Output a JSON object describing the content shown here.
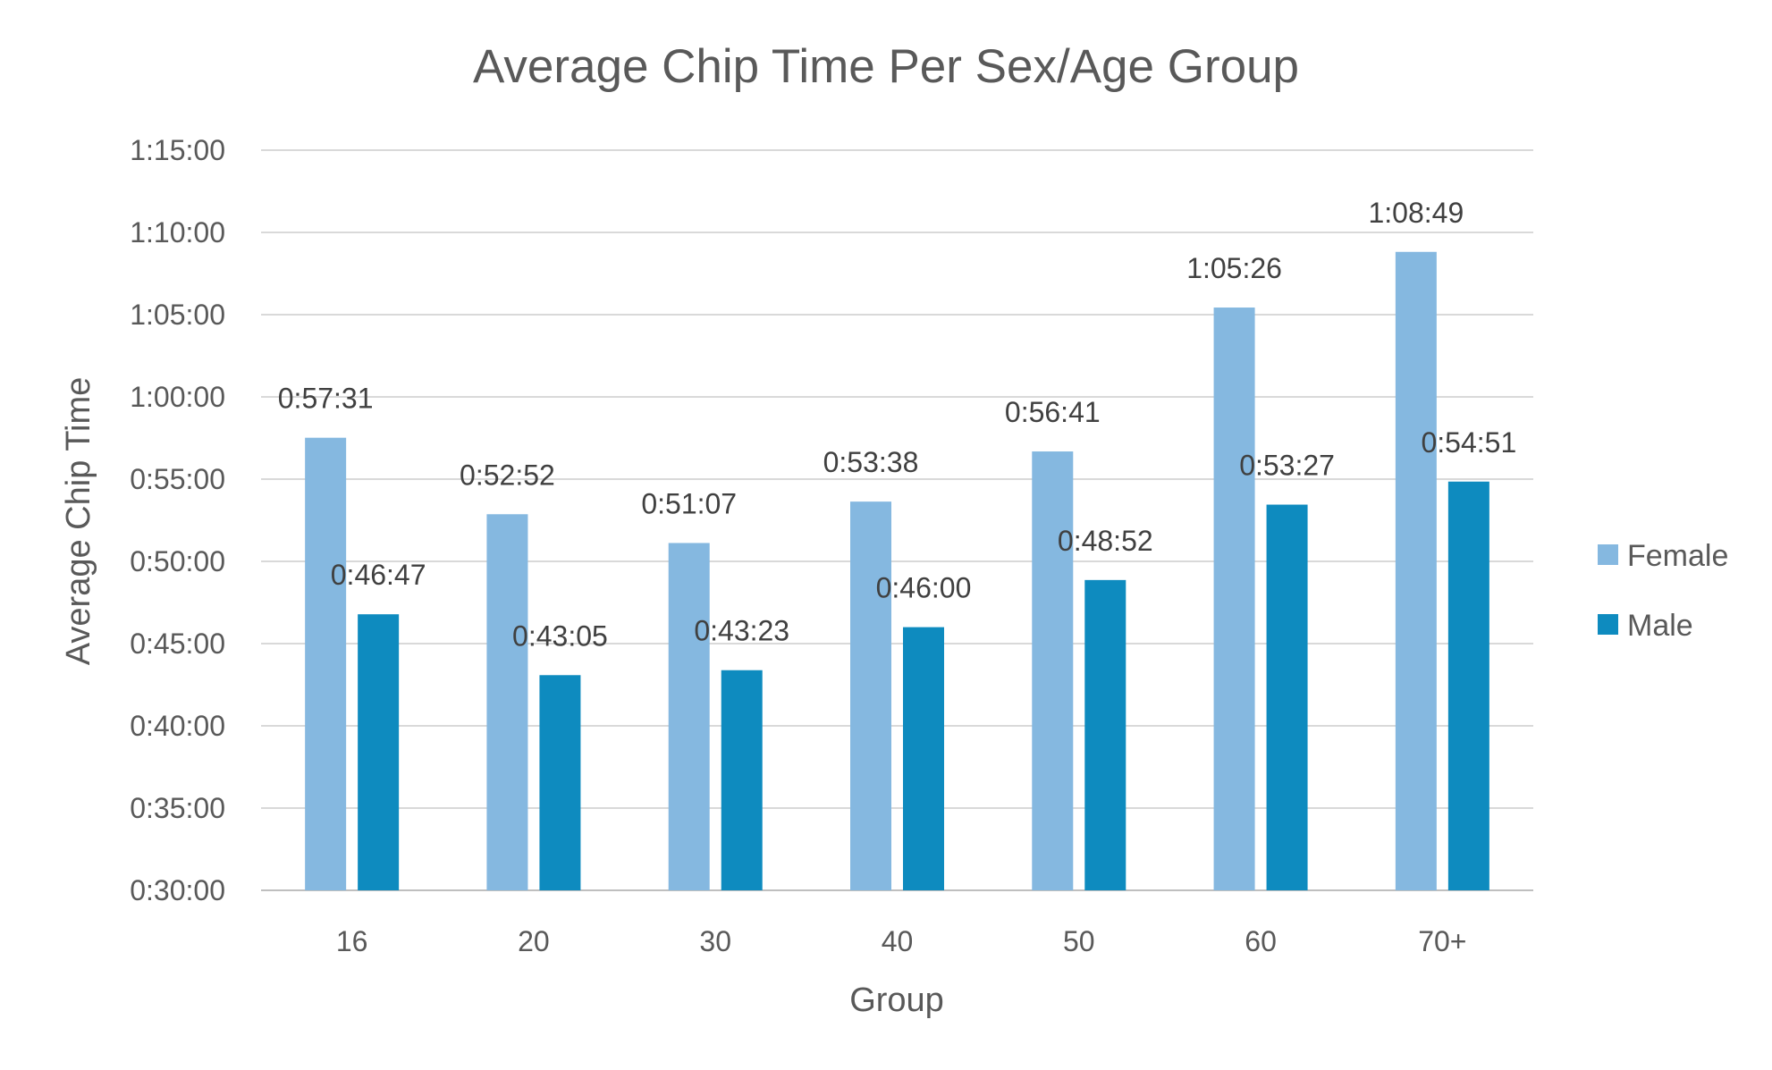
{
  "chart_data": {
    "type": "bar",
    "title": "Average Chip Time Per Sex/Age Group",
    "xlabel": "Group",
    "ylabel": "Average Chip Time",
    "categories": [
      "16",
      "20",
      "30",
      "40",
      "50",
      "60",
      "70+"
    ],
    "yticks": [
      "0:30:00",
      "0:35:00",
      "0:40:00",
      "0:45:00",
      "0:50:00",
      "0:55:00",
      "1:00:00",
      "1:05:00",
      "1:10:00",
      "1:15:00"
    ],
    "ylim_seconds": [
      1800,
      4500
    ],
    "ytick_step_seconds": 300,
    "grid": true,
    "legend_position": "right",
    "series": [
      {
        "name": "Female",
        "color": "#85b8e0",
        "values": [
          "0:57:31",
          "0:52:52",
          "0:51:07",
          "0:53:38",
          "0:56:41",
          "1:05:26",
          "1:08:49"
        ],
        "values_seconds": [
          3451,
          3172,
          3067,
          3218,
          3401,
          3926,
          4129
        ]
      },
      {
        "name": "Male",
        "color": "#0e8bbf",
        "values": [
          "0:46:47",
          "0:43:05",
          "0:43:23",
          "0:46:00",
          "0:48:52",
          "0:53:27",
          "0:54:51"
        ],
        "values_seconds": [
          2807,
          2585,
          2603,
          2760,
          2932,
          3207,
          3291
        ]
      }
    ]
  }
}
